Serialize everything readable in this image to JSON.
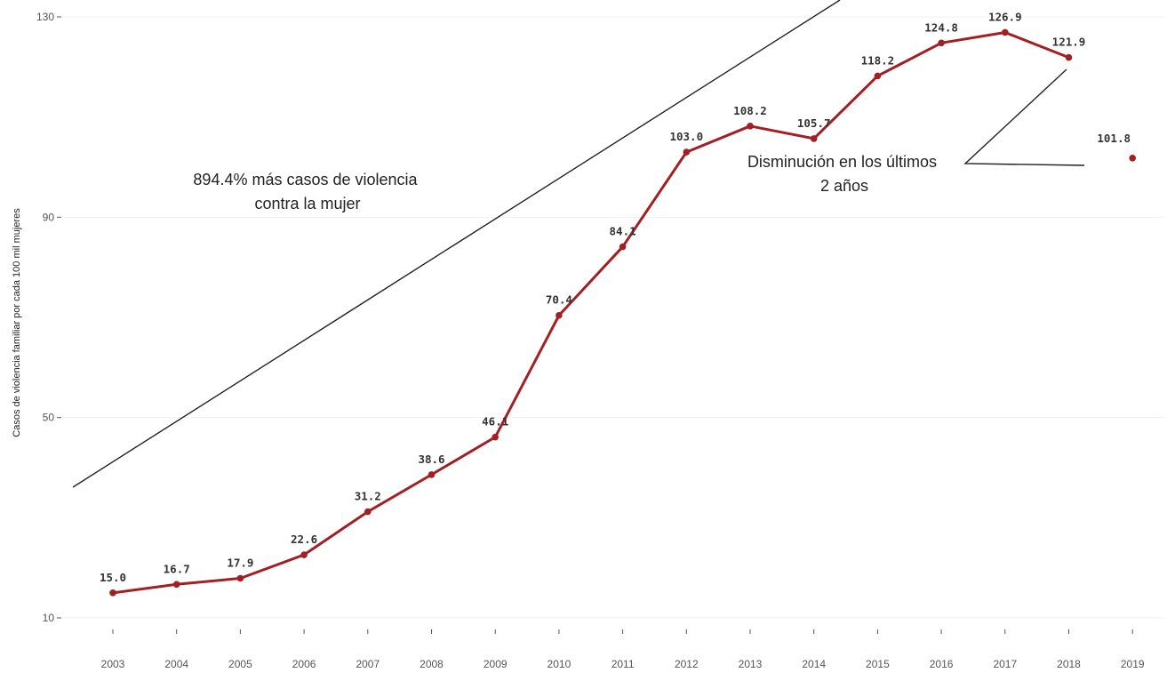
{
  "chart_data": {
    "type": "line",
    "title": "",
    "xlabel": "",
    "ylabel": "Casos de violencia familiar por cada 100 mil mujeres",
    "ylim": [
      10,
      130
    ],
    "y_ticks": [
      10,
      50,
      90,
      130
    ],
    "y_tick_labels": [
      "10",
      "50",
      "90",
      "130"
    ],
    "grid": true,
    "legend": "none",
    "series_color": "#a31f24",
    "categories": [
      "2003",
      "2004",
      "2005",
      "2006",
      "2007",
      "2008",
      "2009",
      "2010",
      "2011",
      "2012",
      "2013",
      "2014",
      "2015",
      "2016",
      "2017",
      "2018",
      "2019"
    ],
    "series": [
      {
        "values": [
          15.0,
          16.7,
          17.9,
          22.6,
          31.2,
          38.6,
          46.1,
          70.4,
          84.1,
          103.0,
          108.2,
          105.7,
          118.2,
          124.8,
          126.9,
          121.9,
          null
        ],
        "labels": [
          "15.0",
          "16.7",
          "17.9",
          "22.6",
          "31.2",
          "38.6",
          "46.1",
          "70.4",
          "84.1",
          "103.0",
          "108.2",
          "105.7",
          "118.2",
          "124.8",
          "126.9",
          "121.9",
          ""
        ]
      }
    ],
    "isolated_point": {
      "x": "2019",
      "y": 101.8,
      "label": "101.8"
    },
    "annotations": [
      {
        "lines": [
          "894.4% más casos de violencia",
          "contra la mujer"
        ]
      },
      {
        "lines": [
          "Disminución en los últimos",
          "2 años"
        ]
      }
    ]
  }
}
